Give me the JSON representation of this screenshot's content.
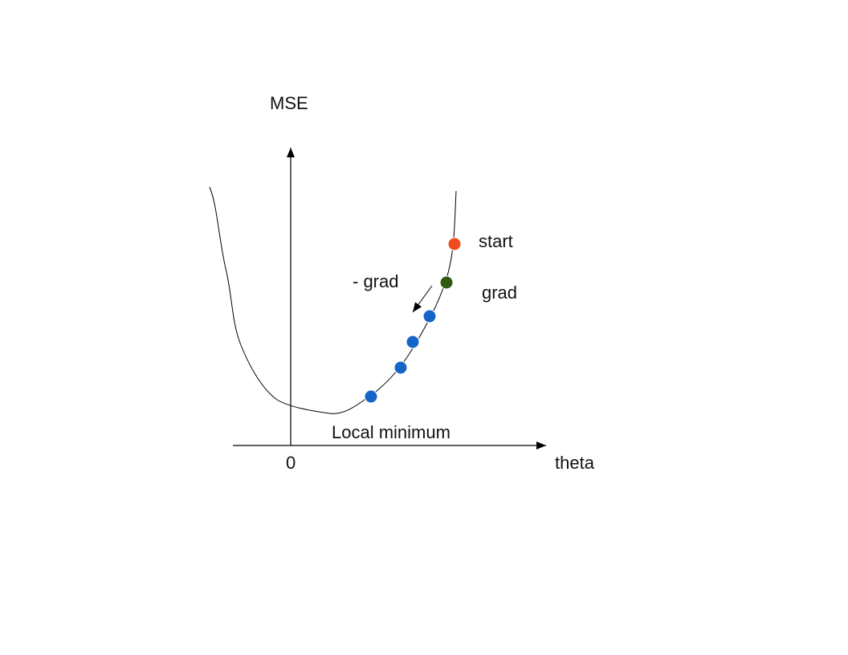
{
  "labels": {
    "y_axis": "MSE",
    "x_axis": "theta",
    "origin": "0",
    "start": "start",
    "grad": "grad",
    "neg_grad": "- grad",
    "minimum": "Local minimum"
  },
  "colors": {
    "line": "#000000",
    "start_point": "#f04a1f",
    "grad_point": "#2f5a12",
    "step_points": "#1565c8"
  },
  "points": {
    "start_count": 1,
    "grad_count": 1,
    "step_count": 4
  }
}
